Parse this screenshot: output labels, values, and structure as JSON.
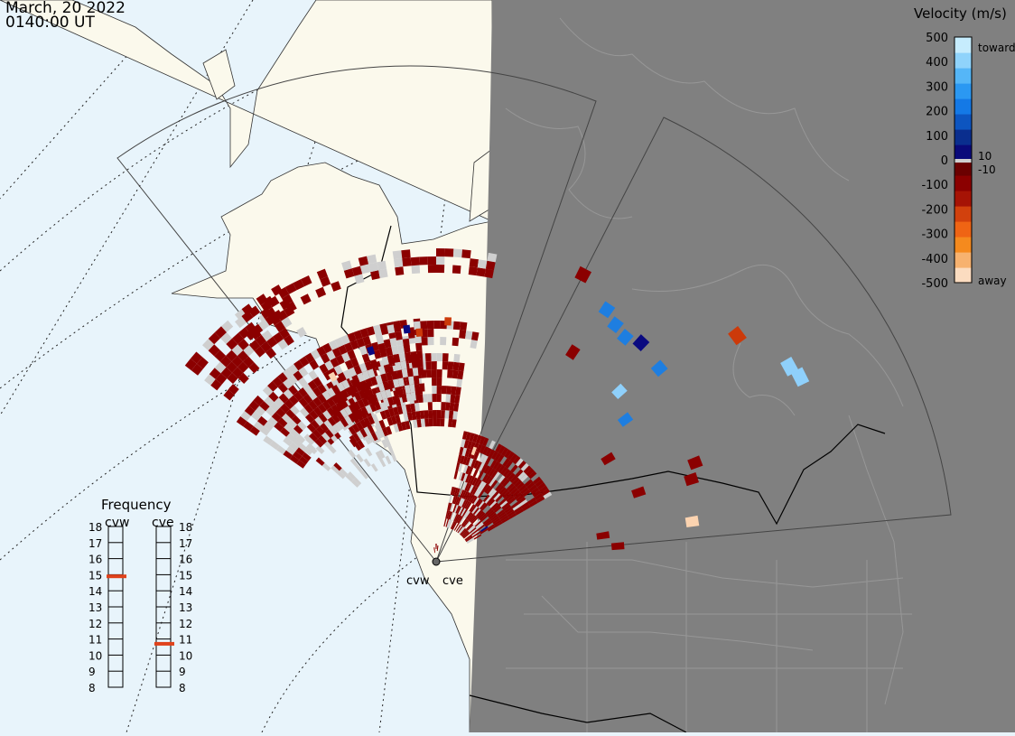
{
  "title": {
    "date": "March, 20 2022",
    "time": "0140:00 UT"
  },
  "colorbar": {
    "title": "Velocity (m/s)",
    "ticks": [
      "500",
      "400",
      "300",
      "200",
      "100",
      "0",
      "-100",
      "-200",
      "-300",
      "-400",
      "-500"
    ],
    "mid_labels": [
      "10",
      "-10"
    ],
    "end_labels": {
      "top": "toward",
      "bottom": "away"
    },
    "colors": [
      "#fbdcc0",
      "#f7b26f",
      "#f58a1e",
      "#ef6414",
      "#d2410d",
      "#a61305",
      "#8b0000",
      "#6b0000",
      "#0a0a7a",
      "#0a2e8e",
      "#0d55c0",
      "#1479e6",
      "#2b98f2",
      "#55b6f7",
      "#8fd3fb",
      "#c6ecfd"
    ]
  },
  "frequency": {
    "title": "Frequency",
    "radars": [
      {
        "name": "cvw",
        "value": 14.9
      },
      {
        "name": "cve",
        "value": 10.7
      }
    ],
    "scale": [
      "18",
      "17",
      "16",
      "15",
      "14",
      "13",
      "12",
      "11",
      "10",
      "9",
      "8"
    ]
  },
  "sites": {
    "labels": [
      "cvw",
      "cve"
    ]
  },
  "colors": {
    "ocean": "#e8f4fb",
    "land": "#fbf9ec",
    "night": "#808080",
    "grey_echo": "#cfcfcf",
    "away_dark": "#8b0000",
    "away_mid": "#cc3a0a",
    "away_light": "#fbd3b0",
    "toward_dark": "#0a0a80",
    "toward_mid": "#1e7ee0",
    "toward_light": "#8fd0fb",
    "freq_marker": "#e0421b"
  }
}
